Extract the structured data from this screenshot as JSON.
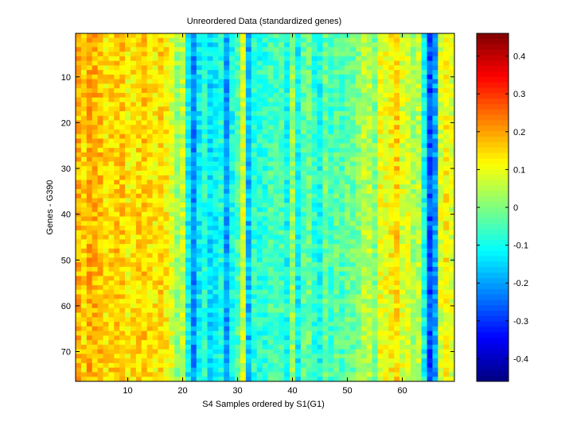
{
  "chart_data": {
    "type": "heatmap",
    "title": "Unreordered Data (standardized genes)",
    "xlabel": "S4 Samples ordered by S1(G1)",
    "ylabel": "Genes - G390",
    "n_cols": 69,
    "n_rows": 76,
    "xlim": [
      0.5,
      69.5
    ],
    "ylim": [
      0.5,
      76.5
    ],
    "xticks": [
      10,
      20,
      30,
      40,
      50,
      60
    ],
    "yticks": [
      10,
      20,
      30,
      40,
      50,
      60,
      70
    ],
    "colorbar": {
      "colormap": "jet",
      "range": [
        -0.46,
        0.46
      ],
      "ticks": [
        0.4,
        0.3,
        0.2,
        0.1,
        0,
        -0.1,
        -0.2,
        -0.3,
        -0.4
      ]
    },
    "column_means": [
      0.18,
      0.15,
      0.19,
      0.18,
      0.17,
      0.14,
      0.15,
      0.16,
      0.16,
      0.12,
      0.14,
      0.15,
      0.16,
      0.14,
      0.13,
      0.15,
      0.13,
      0.08,
      0.02,
      0.06,
      -0.12,
      -0.22,
      -0.12,
      -0.08,
      -0.14,
      -0.12,
      -0.09,
      -0.2,
      -0.1,
      -0.05,
      0.08,
      -0.18,
      -0.08,
      -0.08,
      -0.08,
      -0.05,
      -0.06,
      -0.05,
      -0.1,
      0.02,
      -0.12,
      -0.04,
      -0.02,
      -0.08,
      -0.1,
      -0.02,
      -0.06,
      -0.03,
      -0.05,
      -0.02,
      -0.02,
      0.0,
      0.05,
      0.05,
      0.0,
      0.1,
      0.1,
      0.12,
      0.15,
      0.08,
      0.08,
      0.03,
      0.05,
      -0.1,
      -0.28,
      -0.2,
      0.08,
      0.12,
      0.08
    ],
    "cell_spread": 0.055
  }
}
